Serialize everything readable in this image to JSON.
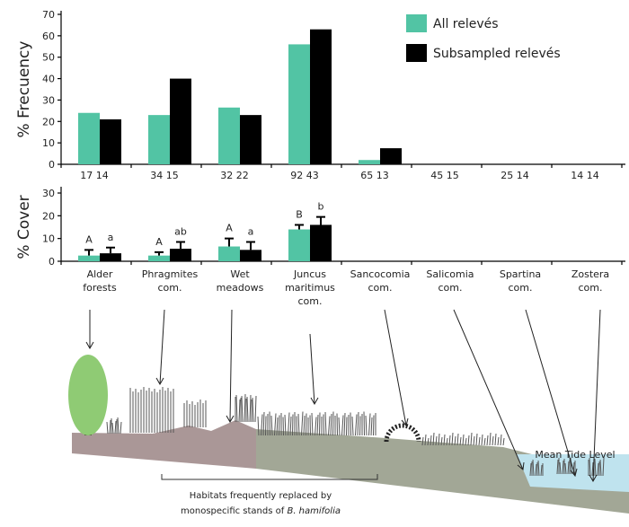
{
  "chart_data": [
    {
      "type": "bar",
      "y_label": "% Frecuency",
      "categories": [
        "17 14",
        "34 15",
        "32 22",
        "92 43",
        "65 13",
        "45 15",
        "25 14",
        "14 14"
      ],
      "series": [
        {
          "name": "All relevés",
          "color": "#52c4a4",
          "values": [
            24,
            23,
            26.5,
            56,
            2,
            0,
            0,
            0
          ]
        },
        {
          "name": "Subsampled relevés",
          "color": "#000000",
          "values": [
            21,
            40,
            23,
            63,
            7.5,
            0,
            0,
            0
          ]
        }
      ],
      "ylim": [
        0,
        70
      ],
      "yticks": [
        0,
        10,
        20,
        30,
        40,
        50,
        60,
        70
      ]
    },
    {
      "type": "bar",
      "y_label": "% Cover",
      "categories": [
        [
          "Alder",
          "forests"
        ],
        [
          "Phragmites",
          "com."
        ],
        [
          "Wet",
          "meadows"
        ],
        [
          "Juncus",
          "maritimus",
          "com."
        ],
        [
          "Sancocomia",
          "com."
        ],
        [
          "Salicomia",
          "com."
        ],
        [
          "Spartina",
          "com."
        ],
        [
          "Zostera",
          "com."
        ]
      ],
      "series": [
        {
          "color": "#52c4a4",
          "values": [
            2.5,
            2.5,
            6.5,
            14,
            null,
            null,
            null,
            null
          ],
          "errors": [
            2.5,
            1.5,
            3.5,
            2,
            null,
            null,
            null,
            null
          ],
          "letters": [
            "A",
            "A",
            "A",
            "B",
            null,
            null,
            null,
            null
          ]
        },
        {
          "color": "#000000",
          "values": [
            3.5,
            5.5,
            5,
            16,
            null,
            null,
            null,
            null
          ],
          "errors": [
            2.5,
            3,
            3.5,
            3.5,
            null,
            null,
            null,
            null
          ],
          "letters": [
            "a",
            "ab",
            "a",
            "b",
            null,
            null,
            null,
            null
          ]
        }
      ],
      "ylim": [
        0,
        30
      ],
      "yticks": [
        0,
        10,
        20,
        30
      ]
    }
  ],
  "diagram": {
    "mean_tide_level": "Mean Tide Level",
    "note_line_1": "Habitats frequently replaced by",
    "note_line_2": [
      "monospecific stands of ",
      "B. hamifolia"
    ]
  }
}
